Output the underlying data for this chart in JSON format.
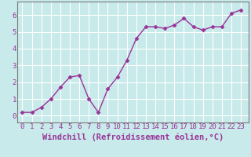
{
  "x": [
    0,
    1,
    2,
    3,
    4,
    5,
    6,
    7,
    8,
    9,
    10,
    11,
    12,
    13,
    14,
    15,
    16,
    17,
    18,
    19,
    20,
    21,
    22,
    23
  ],
  "y": [
    0.2,
    0.2,
    0.5,
    1.0,
    1.7,
    2.3,
    2.4,
    1.0,
    0.2,
    1.6,
    2.3,
    3.3,
    4.6,
    5.3,
    5.3,
    5.2,
    5.4,
    5.8,
    5.3,
    5.1,
    5.3,
    5.3,
    6.1,
    6.3
  ],
  "line_color": "#993399",
  "marker": "D",
  "marker_size": 2.5,
  "bg_color": "#c8eaea",
  "grid_color": "#ffffff",
  "xlabel": "Windchill (Refroidissement éolien,°C)",
  "xlabel_color": "#993399",
  "tick_color": "#993399",
  "ylabel_ticks": [
    0,
    1,
    2,
    3,
    4,
    5,
    6
  ],
  "xlim": [
    -0.5,
    23.8
  ],
  "ylim": [
    -0.4,
    6.8
  ],
  "xticks": [
    0,
    1,
    2,
    3,
    4,
    5,
    6,
    7,
    8,
    9,
    10,
    11,
    12,
    13,
    14,
    15,
    16,
    17,
    18,
    19,
    20,
    21,
    22,
    23
  ],
  "tick_fontsize": 6.5,
  "xlabel_fontsize": 7.5,
  "line_width": 1.0,
  "spine_color": "#7a7a7a"
}
